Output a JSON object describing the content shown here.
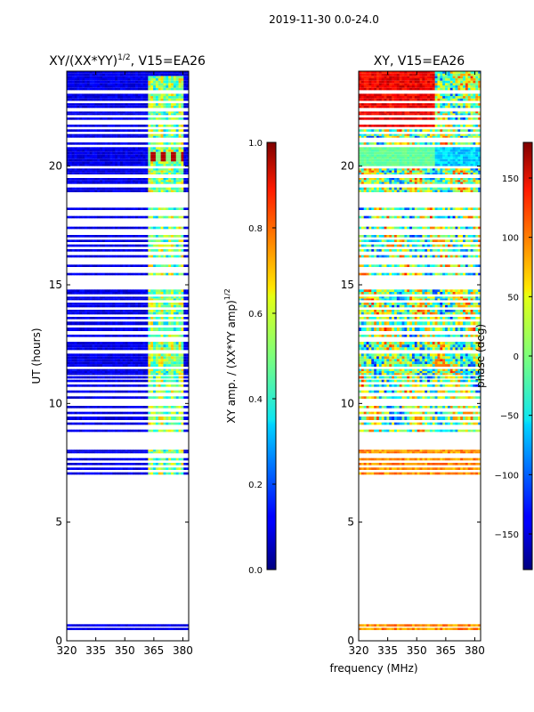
{
  "suptitle": "2019-11-30 0.0-24.0",
  "shared_xlabel": "frequency (MHz)",
  "chart_data": [
    {
      "type": "heatmap",
      "title_main": "XY/(XX*YY)",
      "title_sup": "1/2",
      "title_tail": ", V15=EA26",
      "ylabel": "UT (hours)",
      "xlim": [
        320,
        383
      ],
      "ylim": [
        0,
        24
      ],
      "xticks": [
        320,
        335,
        350,
        365,
        380
      ],
      "yticks": [
        0,
        5,
        10,
        15,
        20
      ],
      "colorbar": {
        "label_main": "XY amp. / (XX*YY amp)",
        "label_sup": "1/2",
        "range": [
          0.0,
          1.0
        ],
        "ticks": [
          "0.0",
          "0.2",
          "0.4",
          "0.6",
          "0.8",
          "1.0"
        ],
        "colormap": "jet"
      }
    },
    {
      "type": "heatmap",
      "title_main": "XY, V15=EA26",
      "title_sup": "",
      "title_tail": "",
      "ylabel": "",
      "xlim": [
        320,
        383
      ],
      "ylim": [
        0,
        24
      ],
      "xticks": [
        320,
        335,
        350,
        365,
        380
      ],
      "yticks": [
        0,
        5,
        10,
        15,
        20
      ],
      "colorbar": {
        "label_main": "phase (deg)",
        "label_sup": "",
        "range": [
          -180,
          180
        ],
        "ticks": [
          "−150",
          "−100",
          "−50",
          "0",
          "50",
          "100",
          "150"
        ],
        "colormap": "jet"
      }
    }
  ]
}
